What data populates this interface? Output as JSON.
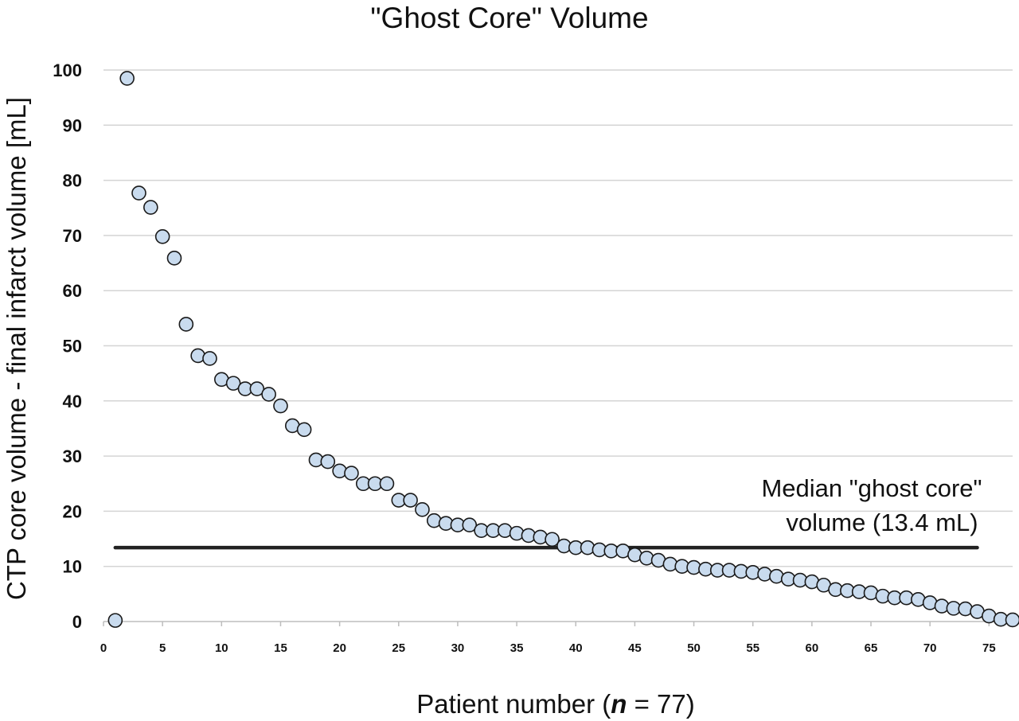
{
  "chart_data": {
    "type": "scatter",
    "title": "\"Ghost Core\" Volume",
    "xlabel": "Patient number (n = 77)",
    "xlabel_parts": [
      "Patient number (",
      "n",
      " = 77)"
    ],
    "ylabel": "CTP core volume - final infarct volume [mL]",
    "xlim": [
      0,
      77
    ],
    "ylim": [
      0,
      100
    ],
    "xticks": [
      "0",
      "5",
      "10",
      "15",
      "20",
      "25",
      "30",
      "35",
      "40",
      "45",
      "50",
      "55",
      "60",
      "65",
      "70",
      "75"
    ],
    "yticks": [
      "0",
      "10",
      "20",
      "30",
      "40",
      "50",
      "60",
      "70",
      "80",
      "90",
      "100"
    ],
    "grid": "horizontal",
    "marker_fill": "#c9dbee",
    "marker_edge": "#1a1a1a",
    "points": [
      [
        1,
        0.2
      ],
      [
        2,
        98.5
      ],
      [
        3,
        77.7
      ],
      [
        4,
        75.1
      ],
      [
        5,
        69.8
      ],
      [
        6,
        65.9
      ],
      [
        7,
        53.9
      ],
      [
        8,
        48.2
      ],
      [
        9,
        47.7
      ],
      [
        10,
        43.9
      ],
      [
        11,
        43.2
      ],
      [
        12,
        42.2
      ],
      [
        13,
        42.2
      ],
      [
        14,
        41.2
      ],
      [
        15,
        39.1
      ],
      [
        16,
        35.5
      ],
      [
        17,
        34.8
      ],
      [
        18,
        29.3
      ],
      [
        19,
        29.0
      ],
      [
        20,
        27.3
      ],
      [
        21,
        26.9
      ],
      [
        22,
        25.0
      ],
      [
        23,
        25.0
      ],
      [
        24,
        25.0
      ],
      [
        25,
        22.0
      ],
      [
        26,
        22.0
      ],
      [
        27,
        20.3
      ],
      [
        28,
        18.3
      ],
      [
        29,
        17.8
      ],
      [
        30,
        17.5
      ],
      [
        31,
        17.5
      ],
      [
        32,
        16.5
      ],
      [
        33,
        16.5
      ],
      [
        34,
        16.5
      ],
      [
        35,
        16.0
      ],
      [
        36,
        15.6
      ],
      [
        37,
        15.3
      ],
      [
        38,
        14.9
      ],
      [
        39,
        13.7
      ],
      [
        40,
        13.4
      ],
      [
        41,
        13.4
      ],
      [
        42,
        13.0
      ],
      [
        43,
        12.8
      ],
      [
        44,
        12.8
      ],
      [
        45,
        12.1
      ],
      [
        46,
        11.5
      ],
      [
        47,
        11.1
      ],
      [
        48,
        10.4
      ],
      [
        49,
        10.0
      ],
      [
        50,
        9.8
      ],
      [
        51,
        9.5
      ],
      [
        52,
        9.3
      ],
      [
        53,
        9.3
      ],
      [
        54,
        9.1
      ],
      [
        55,
        8.9
      ],
      [
        56,
        8.6
      ],
      [
        57,
        8.2
      ],
      [
        58,
        7.7
      ],
      [
        59,
        7.5
      ],
      [
        60,
        7.2
      ],
      [
        61,
        6.6
      ],
      [
        62,
        5.8
      ],
      [
        63,
        5.6
      ],
      [
        64,
        5.4
      ],
      [
        65,
        5.2
      ],
      [
        66,
        4.6
      ],
      [
        67,
        4.3
      ],
      [
        68,
        4.3
      ],
      [
        69,
        4.0
      ],
      [
        70,
        3.4
      ],
      [
        71,
        2.8
      ],
      [
        72,
        2.4
      ],
      [
        73,
        2.3
      ],
      [
        74,
        1.8
      ],
      [
        75,
        1.0
      ],
      [
        76,
        0.4
      ],
      [
        77,
        0.3
      ]
    ],
    "median_line": {
      "value": 13.4,
      "x_start": 1,
      "x_end": 74,
      "color": "#222222",
      "label_lines": [
        "Median \"ghost core\"",
        "volume (13.4 mL)"
      ]
    }
  }
}
